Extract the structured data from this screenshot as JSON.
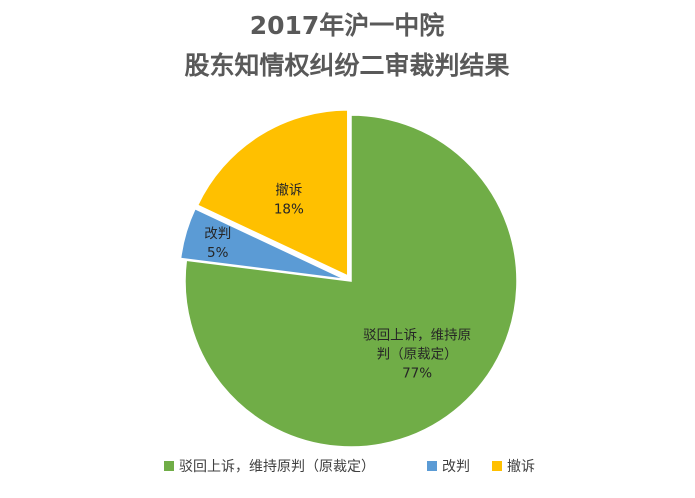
{
  "chart_data": {
    "type": "pie",
    "title_lines": [
      "2017年沪一中院",
      "股东知情权纠纷二审裁判结果"
    ],
    "slices": [
      {
        "name": "驳回上诉，维持原判（原裁定）",
        "label_lines": [
          "驳回上诉，维持原",
          "判（原裁定）"
        ],
        "value": 77,
        "value_label": "77%",
        "color": "#70ad47",
        "exploded": false
      },
      {
        "name": "改判",
        "label_lines": [
          "改判"
        ],
        "value": 5,
        "value_label": "5%",
        "color": "#5b9bd5",
        "exploded": true
      },
      {
        "name": "撤诉",
        "label_lines": [
          "撤诉"
        ],
        "value": 18,
        "value_label": "18%",
        "color": "#ffc000",
        "exploded": true
      }
    ],
    "legend": {
      "position": "bottom"
    }
  }
}
